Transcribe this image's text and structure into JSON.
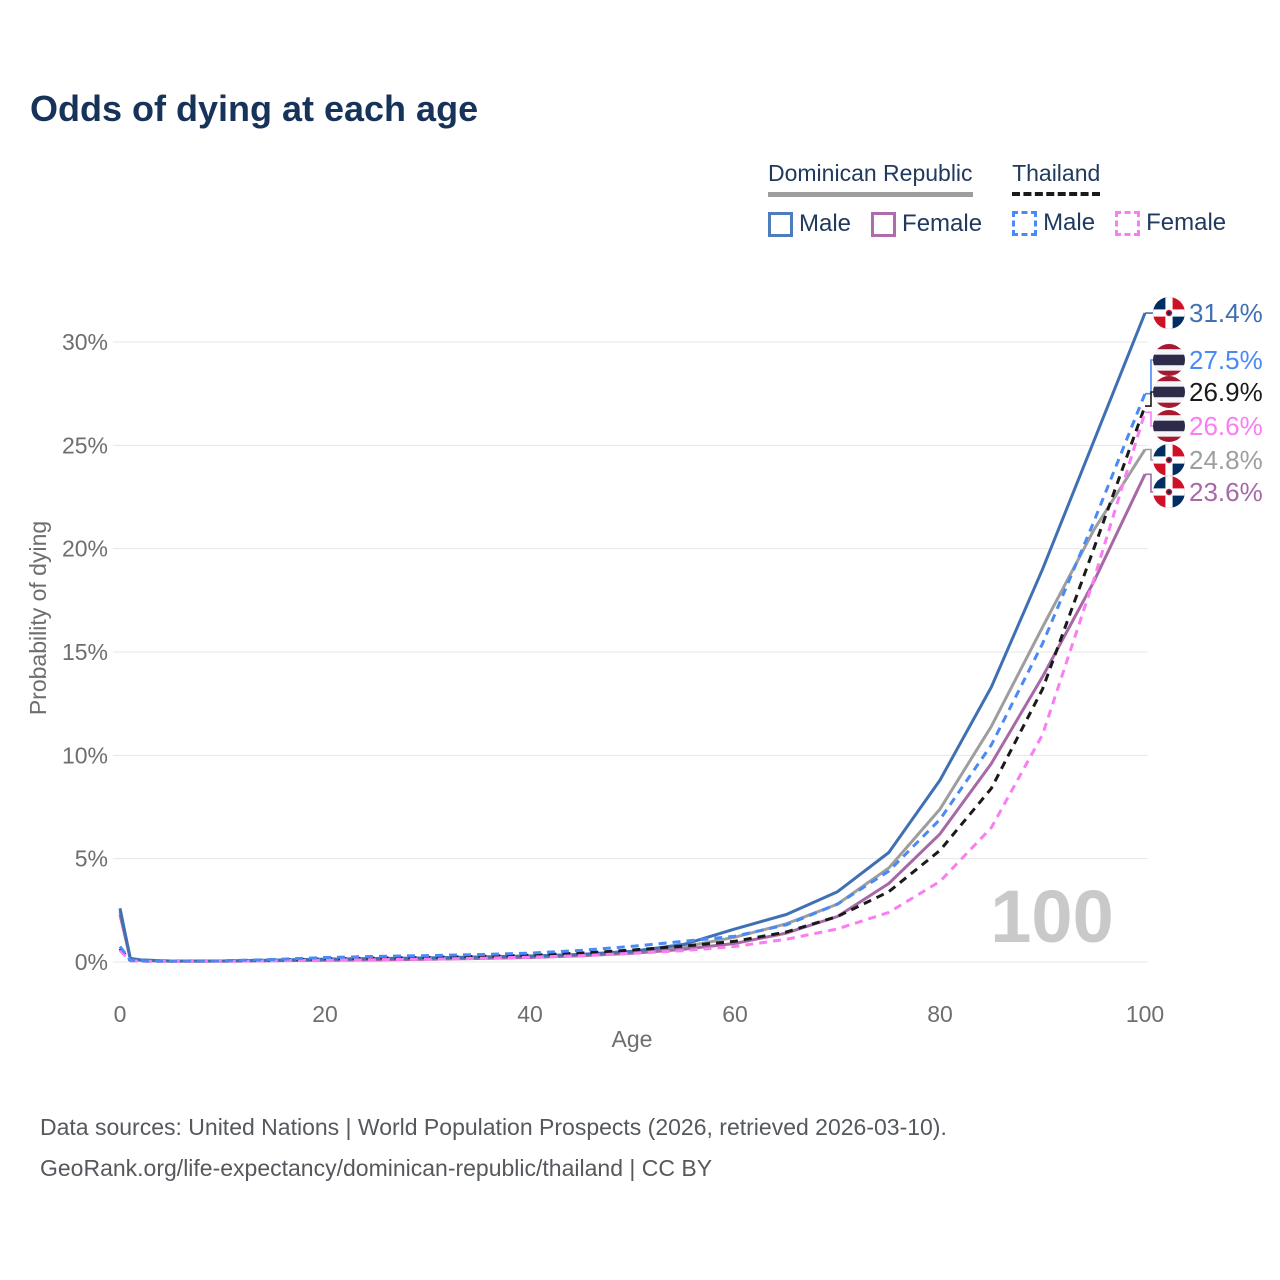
{
  "title": "Odds of dying at each age",
  "legend": {
    "groups": [
      {
        "name": "Dominican Republic",
        "line_style": "solid",
        "line_color": "#9e9e9e",
        "items": [
          {
            "label": "Male",
            "color": "#4f7cba",
            "style": "solid"
          },
          {
            "label": "Female",
            "color": "#ad6cab",
            "style": "solid"
          }
        ]
      },
      {
        "name": "Thailand",
        "line_style": "dashed",
        "line_color": "#1a1a1a",
        "items": [
          {
            "label": "Male",
            "color": "#4a8af4",
            "style": "dashed"
          },
          {
            "label": "Female",
            "color": "#fa7df2",
            "style": "dashed"
          }
        ]
      }
    ]
  },
  "chart_data": {
    "type": "line",
    "title": "Odds of dying at each age",
    "xlabel": "Age",
    "ylabel": "Probability of dying",
    "xlim": [
      0,
      100
    ],
    "ylim_pct": [
      0,
      30
    ],
    "x_ticks": [
      0,
      20,
      40,
      60,
      80,
      100
    ],
    "y_ticks_pct": [
      0,
      5,
      10,
      15,
      20,
      25,
      30
    ],
    "grid": "horizontal",
    "legend_position": "top-right",
    "watermark": "100",
    "ages": [
      0,
      1,
      2,
      3,
      4,
      5,
      10,
      15,
      20,
      25,
      30,
      35,
      40,
      45,
      50,
      55,
      60,
      65,
      70,
      75,
      80,
      85,
      90,
      95,
      100
    ],
    "series": [
      {
        "name": "Dominican Republic Male",
        "country": "Dominican Republic",
        "sex": "Male",
        "color": "#4070b4",
        "dash": false,
        "flag": "dominican-republic",
        "end_label": "31.4%",
        "end_value_pct": 31.4,
        "values": [
          2.6,
          0.18,
          0.1,
          0.08,
          0.06,
          0.05,
          0.05,
          0.09,
          0.14,
          0.17,
          0.2,
          0.24,
          0.29,
          0.37,
          0.52,
          0.85,
          1.6,
          2.3,
          3.4,
          5.3,
          8.8,
          13.3,
          19.0,
          25.2,
          31.4
        ]
      },
      {
        "name": "Thailand Male",
        "country": "Thailand",
        "sex": "Male",
        "color": "#4a8af4",
        "dash": true,
        "flag": "thailand",
        "end_label": "27.5%",
        "end_value_pct": 27.5,
        "values": [
          0.75,
          0.08,
          0.06,
          0.05,
          0.05,
          0.05,
          0.06,
          0.12,
          0.22,
          0.27,
          0.31,
          0.36,
          0.43,
          0.56,
          0.76,
          1.0,
          1.25,
          1.8,
          2.8,
          4.4,
          6.9,
          10.5,
          15.4,
          21.3,
          27.5
        ]
      },
      {
        "name": "Thailand (total)",
        "country": "Thailand",
        "sex": "Both",
        "color": "#1a1a1a",
        "dash": true,
        "flag": "thailand",
        "end_label": "26.9%",
        "end_value_pct": 26.9,
        "values": [
          0.65,
          0.07,
          0.05,
          0.04,
          0.04,
          0.04,
          0.05,
          0.09,
          0.15,
          0.19,
          0.22,
          0.27,
          0.33,
          0.43,
          0.58,
          0.77,
          1.0,
          1.45,
          2.2,
          3.4,
          5.4,
          8.4,
          13.2,
          20.0,
          26.9
        ]
      },
      {
        "name": "Thailand Female",
        "country": "Thailand",
        "sex": "Female",
        "color": "#fa7df2",
        "dash": true,
        "flag": "thailand",
        "end_label": "26.6%",
        "end_value_pct": 26.6,
        "values": [
          0.55,
          0.06,
          0.04,
          0.04,
          0.03,
          0.03,
          0.04,
          0.06,
          0.09,
          0.11,
          0.14,
          0.18,
          0.23,
          0.31,
          0.42,
          0.55,
          0.75,
          1.1,
          1.6,
          2.4,
          3.9,
          6.5,
          11.0,
          18.5,
          26.6
        ]
      },
      {
        "name": "Dominican Republic (total)",
        "country": "Dominican Republic",
        "sex": "Both",
        "color": "#9e9e9e",
        "dash": false,
        "flag": "dominican-republic",
        "end_label": "24.8%",
        "end_value_pct": 24.8,
        "values": [
          2.45,
          0.17,
          0.09,
          0.07,
          0.06,
          0.05,
          0.05,
          0.08,
          0.11,
          0.14,
          0.17,
          0.21,
          0.26,
          0.34,
          0.47,
          0.73,
          1.2,
          1.85,
          2.8,
          4.55,
          7.4,
          11.4,
          16.2,
          20.9,
          24.8
        ]
      },
      {
        "name": "Dominican Republic Female",
        "country": "Dominican Republic",
        "sex": "Female",
        "color": "#a768a7",
        "dash": false,
        "flag": "dominican-republic",
        "end_label": "23.6%",
        "end_value_pct": 23.6,
        "values": [
          2.3,
          0.15,
          0.08,
          0.06,
          0.05,
          0.04,
          0.04,
          0.06,
          0.08,
          0.1,
          0.13,
          0.17,
          0.22,
          0.3,
          0.42,
          0.62,
          0.9,
          1.4,
          2.2,
          3.8,
          6.2,
          9.6,
          13.8,
          18.4,
          23.6
        ]
      }
    ],
    "flag_colors": {
      "dominican_blue": "#002d62",
      "dominican_red": "#ce1126",
      "thai_red": "#a51931",
      "thai_white": "#f4f5f8",
      "thai_blue": "#2d2a4a"
    }
  },
  "footer": {
    "line1": "Data sources: United Nations | World Population Prospects (2026, retrieved 2026-03-10).",
    "line2": "GeoRank.org/life-expectancy/dominican-republic/thailand | CC BY"
  }
}
